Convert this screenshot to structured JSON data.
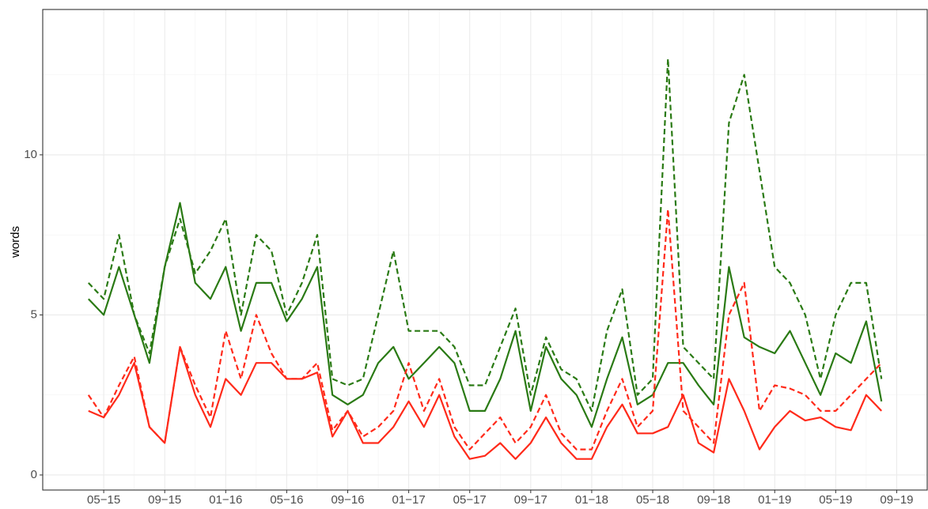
{
  "chart_data": {
    "type": "line",
    "y_label": "words",
    "x": [
      "2015-04",
      "2015-05",
      "2015-06",
      "2015-07",
      "2015-08",
      "2015-09",
      "2015-10",
      "2015-11",
      "2015-12",
      "2016-01",
      "2016-02",
      "2016-03",
      "2016-04",
      "2016-05",
      "2016-06",
      "2016-07",
      "2016-08",
      "2016-09",
      "2016-10",
      "2016-11",
      "2016-12",
      "2017-01",
      "2017-02",
      "2017-03",
      "2017-04",
      "2017-05",
      "2017-06",
      "2017-07",
      "2017-08",
      "2017-09",
      "2017-10",
      "2017-11",
      "2017-12",
      "2018-01",
      "2018-02",
      "2018-03",
      "2018-04",
      "2018-05",
      "2018-06",
      "2018-07",
      "2018-08",
      "2018-09",
      "2018-10",
      "2018-11",
      "2018-12",
      "2019-01",
      "2019-02",
      "2019-03",
      "2019-04",
      "2019-05",
      "2019-06",
      "2019-07",
      "2019-08"
    ],
    "series": [
      {
        "color": "#2a7a14",
        "linestyle": "dashed",
        "values": [
          6.0,
          5.5,
          7.5,
          5.0,
          3.8,
          6.5,
          8.0,
          6.3,
          7.0,
          8.0,
          5.0,
          7.5,
          7.0,
          5.0,
          6.0,
          7.5,
          3.0,
          2.8,
          3.0,
          5.0,
          7.0,
          4.5,
          4.5,
          4.5,
          4.0,
          2.8,
          2.8,
          4.0,
          5.2,
          2.5,
          4.3,
          3.3,
          3.0,
          2.0,
          4.5,
          5.8,
          2.5,
          3.0,
          13.0,
          4.0,
          3.5,
          3.0,
          11.0,
          12.5,
          9.5,
          6.5,
          6.0,
          5.0,
          3.0,
          5.0,
          6.0,
          6.0,
          3.0
        ]
      },
      {
        "color": "#2a7a14",
        "linestyle": "solid",
        "values": [
          5.5,
          5.0,
          6.5,
          5.0,
          3.5,
          6.5,
          8.5,
          6.0,
          5.5,
          6.5,
          4.5,
          6.0,
          6.0,
          4.8,
          5.5,
          6.5,
          2.5,
          2.2,
          2.5,
          3.5,
          4.0,
          3.0,
          3.5,
          4.0,
          3.5,
          2.0,
          2.0,
          3.0,
          4.5,
          2.0,
          4.0,
          3.0,
          2.5,
          1.5,
          3.0,
          4.3,
          2.2,
          2.5,
          3.5,
          3.5,
          2.8,
          2.2,
          6.5,
          4.3,
          4.0,
          3.8,
          4.5,
          3.5,
          2.5,
          3.8,
          3.5,
          4.8,
          2.3
        ]
      },
      {
        "color": "#ff2a1a",
        "linestyle": "dashed",
        "values": [
          2.5,
          1.8,
          2.8,
          3.7,
          1.5,
          1.0,
          4.0,
          2.8,
          1.8,
          4.5,
          3.0,
          5.0,
          3.8,
          3.0,
          3.0,
          3.5,
          1.4,
          2.0,
          1.2,
          1.5,
          2.0,
          3.5,
          2.0,
          3.0,
          1.5,
          0.8,
          1.3,
          1.8,
          1.0,
          1.5,
          2.5,
          1.3,
          0.8,
          0.8,
          2.0,
          3.0,
          1.5,
          2.0,
          8.3,
          2.0,
          1.5,
          1.0,
          5.0,
          6.0,
          2.0,
          2.8,
          2.7,
          2.5,
          2.0,
          2.0,
          2.5,
          3.0,
          3.5
        ]
      },
      {
        "color": "#ff2a1a",
        "linestyle": "solid",
        "values": [
          2.0,
          1.8,
          2.5,
          3.5,
          1.5,
          1.0,
          4.0,
          2.5,
          1.5,
          3.0,
          2.5,
          3.5,
          3.5,
          3.0,
          3.0,
          3.2,
          1.2,
          2.0,
          1.0,
          1.0,
          1.5,
          2.3,
          1.5,
          2.5,
          1.2,
          0.5,
          0.6,
          1.0,
          0.5,
          1.0,
          1.8,
          1.0,
          0.5,
          0.5,
          1.5,
          2.2,
          1.3,
          1.3,
          1.5,
          2.5,
          1.0,
          0.7,
          3.0,
          2.0,
          0.8,
          1.5,
          2.0,
          1.7,
          1.8,
          1.5,
          1.4,
          2.5,
          2.0
        ]
      }
    ],
    "xlim": [
      "2015-01",
      "2019-11"
    ],
    "xticks": [
      {
        "value": "2015-05",
        "label": "05−15"
      },
      {
        "value": "2015-09",
        "label": "09−15"
      },
      {
        "value": "2016-01",
        "label": "01−16"
      },
      {
        "value": "2016-05",
        "label": "05−16"
      },
      {
        "value": "2016-09",
        "label": "09−16"
      },
      {
        "value": "2017-01",
        "label": "01−17"
      },
      {
        "value": "2017-05",
        "label": "05−17"
      },
      {
        "value": "2017-09",
        "label": "09−17"
      },
      {
        "value": "2018-01",
        "label": "01−18"
      },
      {
        "value": "2018-05",
        "label": "05−18"
      },
      {
        "value": "2018-09",
        "label": "09−18"
      },
      {
        "value": "2019-01",
        "label": "01−19"
      },
      {
        "value": "2019-05",
        "label": "05−19"
      },
      {
        "value": "2019-09",
        "label": "09−19"
      }
    ],
    "ylim": [
      -0.47,
      14.54
    ],
    "yticks": [
      0,
      5,
      10
    ],
    "grid": true
  }
}
